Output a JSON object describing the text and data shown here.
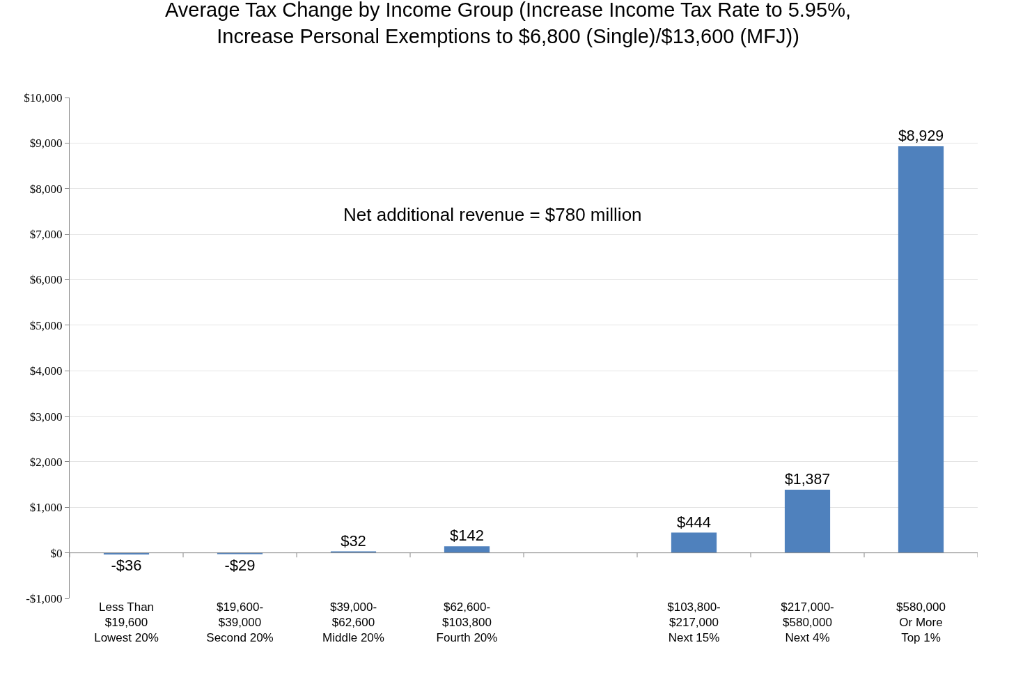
{
  "chart_data": {
    "type": "bar",
    "title": "Average Tax Change by Income Group (Increase Income Tax Rate to 5.95%,\nIncrease Personal Exemptions to $6,800 (Single)/$13,600 (MFJ))",
    "categories": [
      "Less Than\n$19,600\nLowest 20%",
      "$19,600-\n$39,000\nSecond 20%",
      "$39,000-\n$62,600\nMiddle 20%",
      "$62,600-\n$103,800\nFourth 20%",
      null,
      "$103,800-\n$217,000\nNext 15%",
      "$217,000-\n$580,000\nNext 4%",
      "$580,000\nOr More\nTop 1%"
    ],
    "values": [
      -36,
      -29,
      32,
      142,
      null,
      444,
      1387,
      8929
    ],
    "value_labels": [
      "-$36",
      "-$29",
      "$32",
      "$142",
      null,
      "$444",
      "$1,387",
      "$8,929"
    ],
    "color": "#4f81bd",
    "ylim": [
      -1000,
      10000
    ],
    "yticks": [
      {
        "value": -1000,
        "label": "-$1,000"
      },
      {
        "value": 0,
        "label": "$0"
      },
      {
        "value": 1000,
        "label": "$1,000"
      },
      {
        "value": 2000,
        "label": "$2,000"
      },
      {
        "value": 3000,
        "label": "$3,000"
      },
      {
        "value": 4000,
        "label": "$4,000"
      },
      {
        "value": 5000,
        "label": "$5,000"
      },
      {
        "value": 6000,
        "label": "$6,000"
      },
      {
        "value": 7000,
        "label": "$7,000"
      },
      {
        "value": 8000,
        "label": "$8,000"
      },
      {
        "value": 9000,
        "label": "$9,000"
      },
      {
        "value": 10000,
        "label": "$10,000"
      }
    ],
    "grid": "y",
    "annotations": [
      "Net additional revenue = $780 million"
    ]
  }
}
